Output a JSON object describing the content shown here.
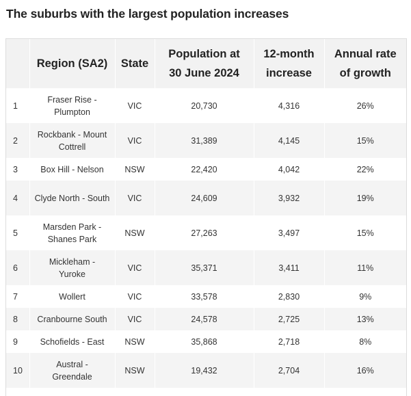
{
  "title": "The suburbs with the largest population increases",
  "table": {
    "headers": [
      "",
      "Region (SA2)",
      "State",
      "Population at 30 June 2024",
      "12-month increase",
      "Annual rate of growth"
    ],
    "rows": [
      {
        "rank": "1",
        "region": "Fraser Rise - Plumpton",
        "state": "VIC",
        "population": "20,730",
        "increase": "4,316",
        "growth": "26%"
      },
      {
        "rank": "2",
        "region": "Rockbank - Mount Cottrell",
        "state": "VIC",
        "population": "31,389",
        "increase": "4,145",
        "growth": "15%"
      },
      {
        "rank": "3",
        "region": "Box Hill - Nelson",
        "state": "NSW",
        "population": "22,420",
        "increase": "4,042",
        "growth": "22%"
      },
      {
        "rank": "4",
        "region": "Clyde North - South",
        "state": "VIC",
        "population": "24,609",
        "increase": "3,932",
        "growth": "19%"
      },
      {
        "rank": "5",
        "region": "Marsden Park - Shanes Park",
        "state": "NSW",
        "population": "27,263",
        "increase": "3,497",
        "growth": "15%"
      },
      {
        "rank": "6",
        "region": "Mickleham - Yuroke",
        "state": "VIC",
        "population": "35,371",
        "increase": "3,411",
        "growth": "11%"
      },
      {
        "rank": "7",
        "region": "Wollert",
        "state": "VIC",
        "population": "33,578",
        "increase": "2,830",
        "growth": "9%"
      },
      {
        "rank": "8",
        "region": "Cranbourne South",
        "state": "VIC",
        "population": "24,578",
        "increase": "2,725",
        "growth": "13%"
      },
      {
        "rank": "9",
        "region": "Schofields - East",
        "state": "NSW",
        "population": "35,868",
        "increase": "2,718",
        "growth": "8%"
      },
      {
        "rank": "10",
        "region": "Austral - Greendale",
        "state": "NSW",
        "population": "19,432",
        "increase": "2,704",
        "growth": "16%"
      }
    ]
  }
}
